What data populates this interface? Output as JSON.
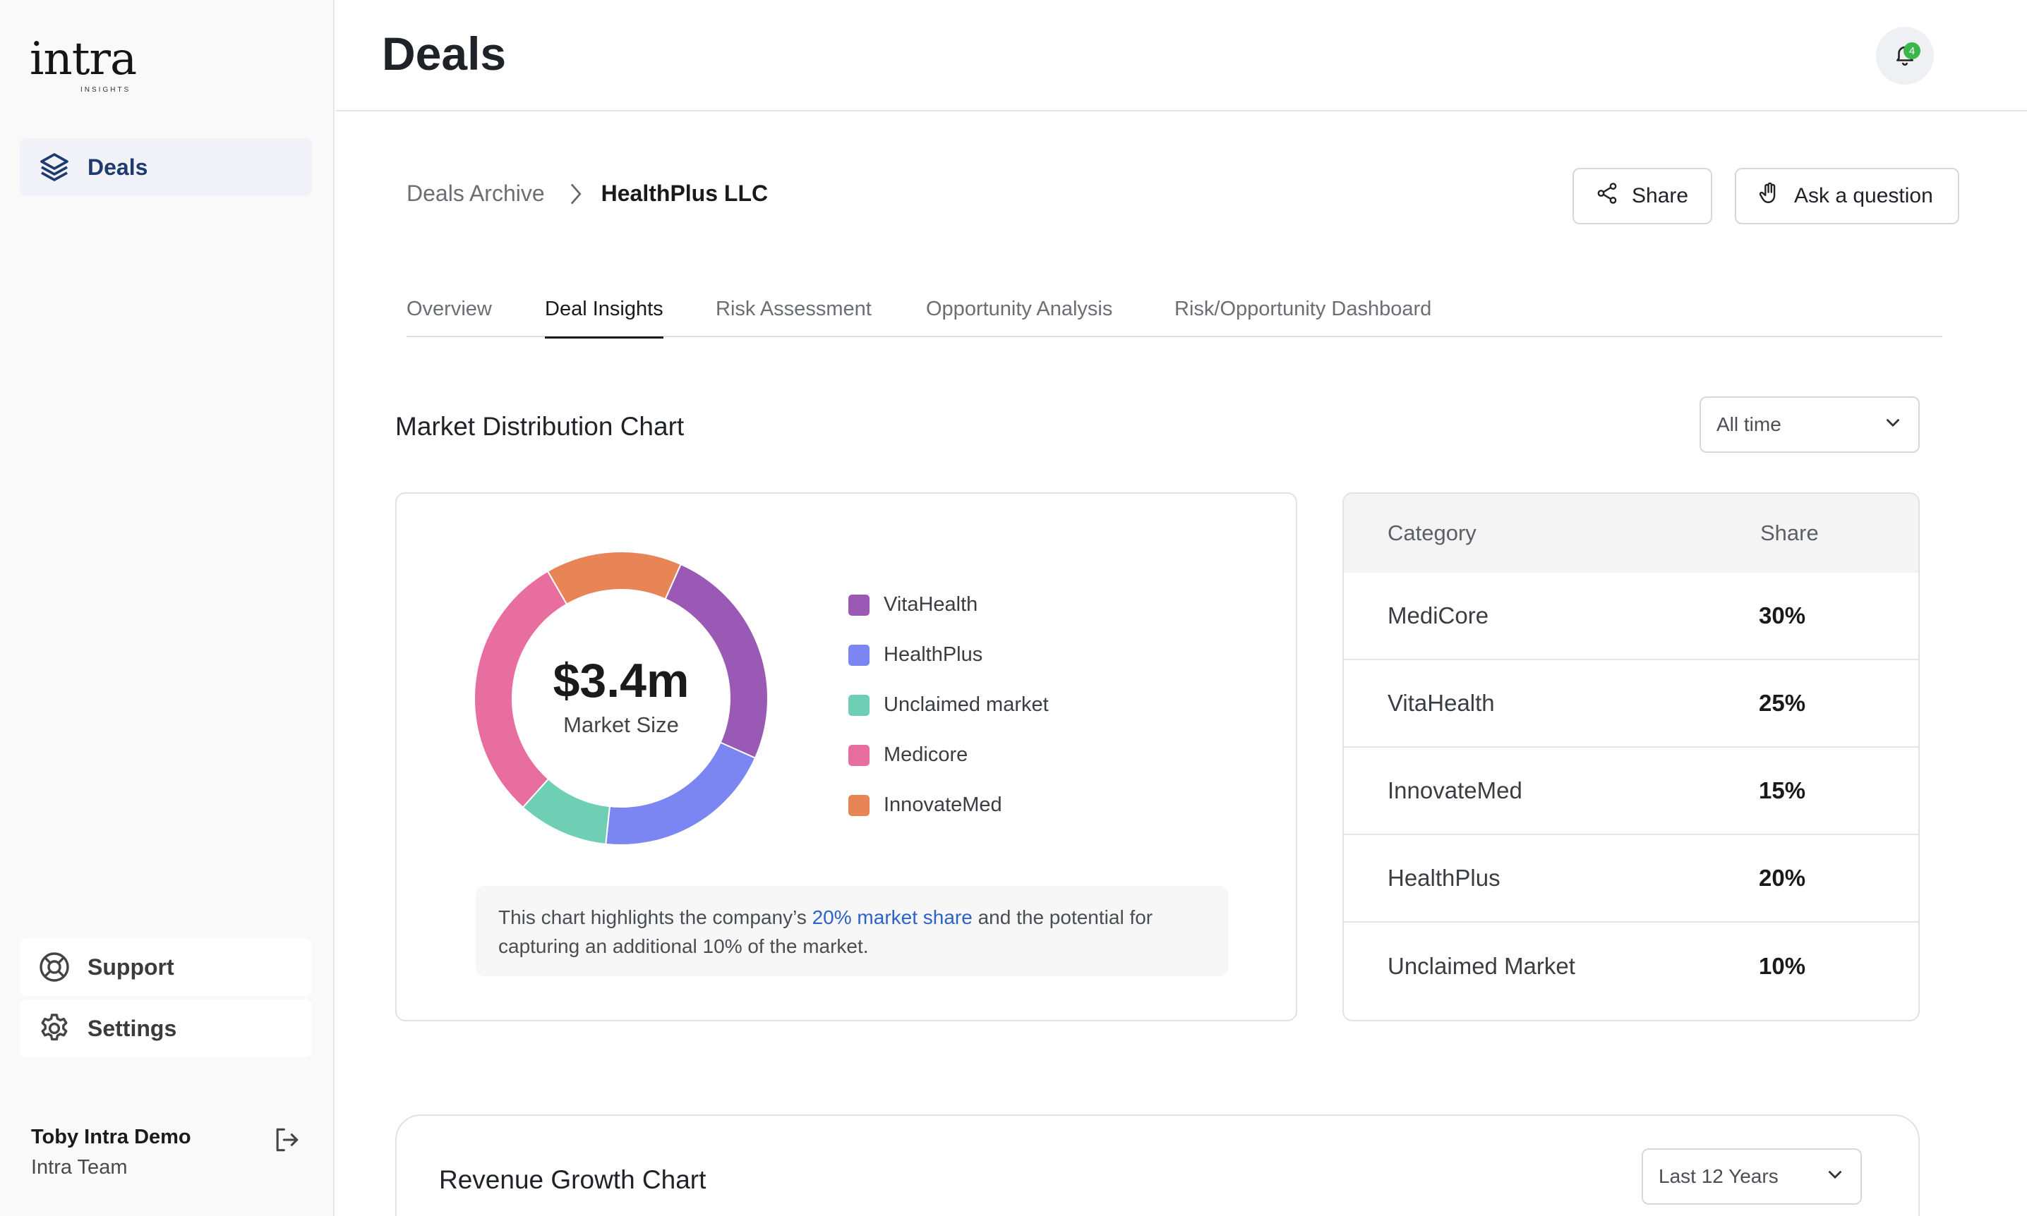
{
  "sidebar": {
    "logo": "intra",
    "logo_sub": "INSIGHTS",
    "nav": [
      {
        "label": "Deals",
        "icon": "layers-icon"
      },
      {
        "label": "Support",
        "icon": "lifebuoy-icon"
      },
      {
        "label": "Settings",
        "icon": "gear-icon"
      }
    ],
    "user": {
      "name": "Toby Intra Demo",
      "team": "Intra Team"
    }
  },
  "header": {
    "title": "Deals",
    "notification_count": "4"
  },
  "breadcrumb": {
    "parent": "Deals Archive",
    "current": "HealthPlus LLC"
  },
  "actions": {
    "share": "Share",
    "ask": "Ask a question"
  },
  "tabs": [
    "Overview",
    "Deal Insights",
    "Risk Assessment",
    "Opportunity Analysis",
    "Risk/Opportunity Dashboard"
  ],
  "active_tab": "Deal Insights",
  "market": {
    "title": "Market Distribution Chart",
    "filter": "All time",
    "center_value": "$3.4m",
    "center_label": "Market Size",
    "note_pre": "This chart highlights the company’s ",
    "note_link": "20% market share",
    "note_post": " and the potential for capturing an additional 10% of the market.",
    "legend": [
      "VitaHealth",
      "HealthPlus",
      "Unclaimed market",
      "Medicore",
      "InnovateMed"
    ],
    "table_headers": {
      "category": "Category",
      "share": "Share"
    },
    "table_rows": [
      {
        "category": "MediCore",
        "share": "30%"
      },
      {
        "category": "VitaHealth",
        "share": "25%"
      },
      {
        "category": "InnovateMed",
        "share": "15%"
      },
      {
        "category": "HealthPlus",
        "share": "20%"
      },
      {
        "category": "Unclaimed Market",
        "share": "10%"
      }
    ]
  },
  "chart_data": {
    "type": "pie",
    "categories": [
      "VitaHealth",
      "HealthPlus",
      "Unclaimed market",
      "Medicore",
      "InnovateMed"
    ],
    "values": [
      25,
      20,
      10,
      30,
      15
    ],
    "colors": [
      "#9b59b6",
      "#7b86f2",
      "#6fcfb5",
      "#e96ea0",
      "#e88556"
    ]
  },
  "revenue": {
    "title": "Revenue Growth Chart",
    "filter": "Last 12 Years"
  }
}
